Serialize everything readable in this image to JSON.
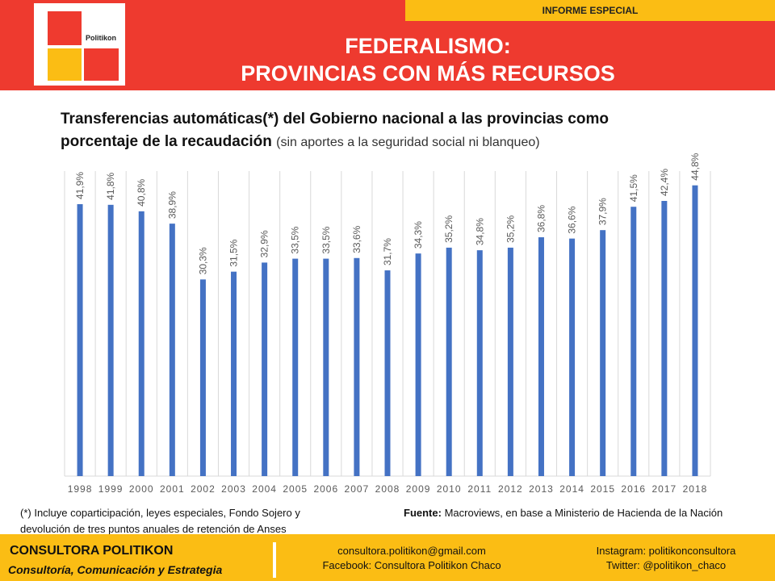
{
  "header": {
    "tag": "INFORME ESPECIAL",
    "logo_text": "Politikon",
    "title_line1": "FEDERALISMO:",
    "title_line2": "PROVINCIAS CON MÁS RECURSOS",
    "colors": {
      "red": "#ee3a2f",
      "yellow": "#fbbd14"
    }
  },
  "subtitle": {
    "bold_line1": "Transferencias automáticas(*) del Gobierno nacional a las provincias como",
    "bold_line2": "porcentaje de la recaudación",
    "light": "(sin aportes a la seguridad social ni blanqueo)"
  },
  "chart_data": {
    "type": "bar",
    "categories": [
      "1998",
      "1999",
      "2000",
      "2001",
      "2002",
      "2003",
      "2004",
      "2005",
      "2006",
      "2007",
      "2008",
      "2009",
      "2010",
      "2011",
      "2012",
      "2013",
      "2014",
      "2015",
      "2016",
      "2017",
      "2018"
    ],
    "values": [
      41.9,
      41.8,
      40.8,
      38.9,
      30.3,
      31.5,
      32.9,
      33.5,
      33.5,
      33.6,
      31.7,
      34.3,
      35.2,
      34.8,
      35.2,
      36.8,
      36.6,
      37.9,
      41.5,
      42.4,
      44.8
    ],
    "labels": [
      "41,9%",
      "41,8%",
      "40,8%",
      "38,9%",
      "30,3%",
      "31,5%",
      "32,9%",
      "33,5%",
      "33,5%",
      "33,6%",
      "31,7%",
      "34,3%",
      "35,2%",
      "34,8%",
      "35,2%",
      "36,8%",
      "36,6%",
      "37,9%",
      "41,5%",
      "42,4%",
      "44,8%"
    ],
    "ylim": [
      0,
      47
    ],
    "grid": "vertical",
    "bar_color": "#4472c4"
  },
  "notes": {
    "left": "(*) Incluye coparticipación, leyes especiales, Fondo Sojero y devolución de tres puntos anuales de retención de Anses",
    "source_label": "Fuente:",
    "source_text": "Macroviews, en base a Ministerio de Hacienda de la Nación"
  },
  "footer": {
    "name": "CONSULTORA POLITIKON",
    "tagline": "Consultoría, Comunicación y Estrategia",
    "email": "consultora.politikon@gmail.com",
    "facebook": "Facebook: Consultora Politikon Chaco",
    "instagram": "Instagram: politikonconsultora",
    "twitter": "Twitter: @politikon_chaco"
  }
}
